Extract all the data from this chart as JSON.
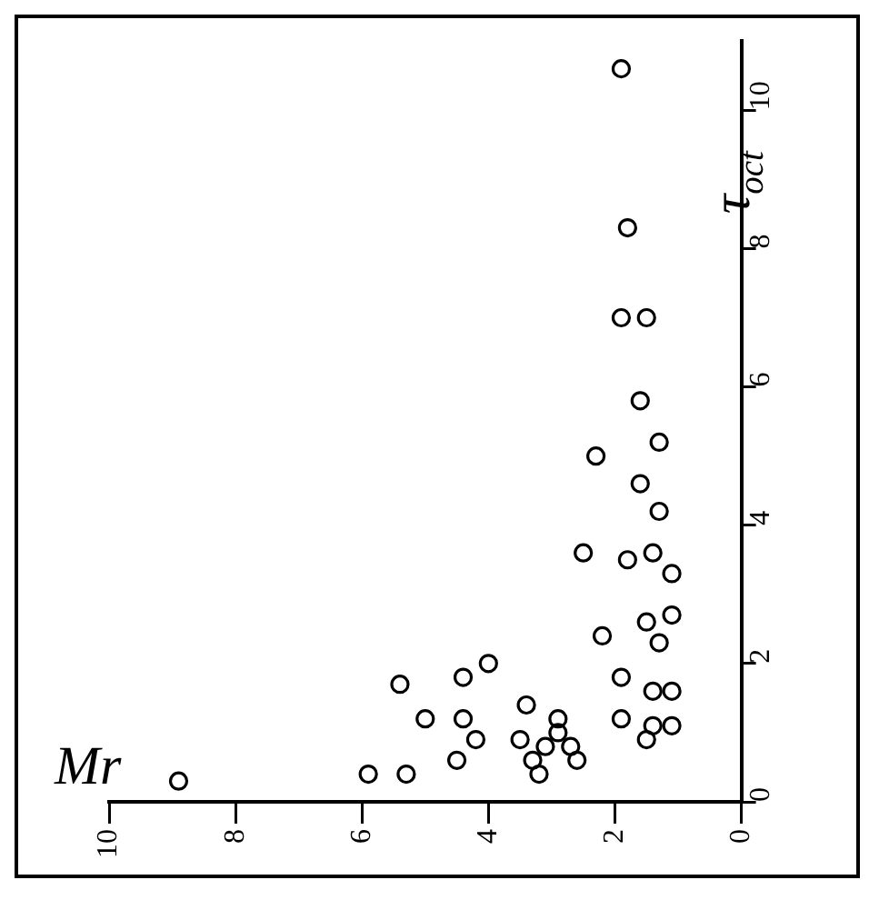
{
  "chart_data": {
    "type": "scatter",
    "xlabel": "Mr",
    "ylabel": "τ$_{oct}$",
    "marker": "circle",
    "grid": false,
    "legend": false,
    "xlim": [
      10,
      0
    ],
    "xticks": [
      10,
      8,
      6,
      4,
      2,
      0
    ],
    "ylim": [
      0,
      11
    ],
    "yticks": [
      0,
      2,
      4,
      6,
      8,
      10
    ],
    "series": [
      {
        "color": "#000000",
        "x": [
          8.9,
          5.9,
          5.3,
          5.4,
          5.0,
          4.4,
          4.0,
          4.4,
          4.2,
          4.5,
          3.4,
          3.5,
          3.3,
          3.2,
          3.1,
          2.9,
          2.9,
          2.7,
          2.6,
          1.9,
          1.9,
          2.2,
          1.5,
          1.4,
          1.1,
          1.4,
          1.1,
          1.3,
          1.5,
          1.1,
          2.3,
          1.3,
          1.6,
          1.3,
          2.5,
          1.8,
          1.4,
          1.1,
          1.6,
          1.9,
          1.8,
          1.9,
          1.5
        ],
        "values": [
          0.3,
          0.4,
          0.4,
          1.7,
          1.2,
          1.8,
          2.0,
          1.2,
          0.9,
          0.6,
          1.4,
          0.9,
          0.6,
          0.4,
          0.8,
          1.0,
          1.2,
          0.8,
          0.6,
          1.2,
          1.8,
          2.4,
          0.9,
          1.1,
          1.1,
          1.6,
          1.6,
          2.3,
          2.6,
          2.7,
          5.0,
          5.2,
          4.6,
          4.2,
          3.6,
          3.5,
          3.6,
          3.3,
          5.8,
          10.6,
          8.3,
          7.0,
          7.0
        ]
      }
    ]
  }
}
